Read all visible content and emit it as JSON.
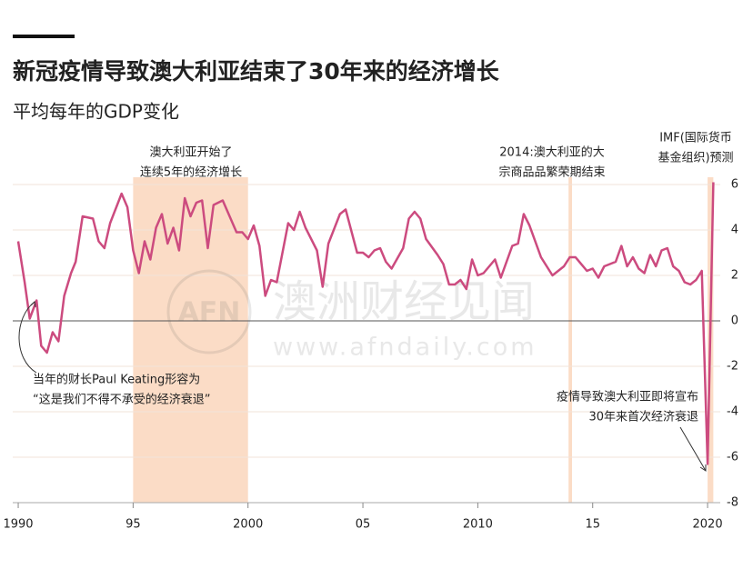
{
  "chart_data": {
    "type": "line",
    "title": "新冠疫情导致澳大利亚结束了30年来的经济增长",
    "subtitle": "平均每年的GDP变化",
    "color": "#cc4b7f",
    "x": [
      1990.0,
      1990.28,
      1990.5,
      1990.8,
      1991.0,
      1991.25,
      1991.5,
      1991.75,
      1992.0,
      1992.3,
      1992.5,
      1992.8,
      1993.25,
      1993.5,
      1993.75,
      1994.0,
      1994.5,
      1994.75,
      1995.0,
      1995.25,
      1995.5,
      1995.75,
      1996.0,
      1996.25,
      1996.5,
      1996.75,
      1997.0,
      1997.25,
      1997.5,
      1997.75,
      1998.0,
      1998.25,
      1998.5,
      1998.9,
      1999.5,
      1999.75,
      2000.0,
      2000.25,
      2000.5,
      2000.75,
      2001.0,
      2001.25,
      2001.75,
      2002.0,
      2002.25,
      2002.5,
      2003.0,
      2003.25,
      2003.5,
      2004.0,
      2004.25,
      2004.75,
      2005.0,
      2005.25,
      2005.5,
      2005.75,
      2006.0,
      2006.25,
      2006.75,
      2007.0,
      2007.25,
      2007.5,
      2007.75,
      2008.25,
      2008.5,
      2008.75,
      2009.0,
      2009.25,
      2009.5,
      2009.75,
      2010.0,
      2010.25,
      2010.75,
      2011.0,
      2011.5,
      2011.75,
      2012.0,
      2012.25,
      2012.75,
      2013.25,
      2013.5,
      2013.75,
      2014.0,
      2014.25,
      2014.75,
      2015.0,
      2015.25,
      2015.5,
      2016.0,
      2016.25,
      2016.5,
      2016.75,
      2017.0,
      2017.25,
      2017.5,
      2017.75,
      2018.0,
      2018.25,
      2018.5,
      2018.75,
      2019.0,
      2019.25,
      2019.5,
      2019.75,
      2020.0,
      2020.25
    ],
    "values": [
      3.5,
      1.7,
      0.1,
      0.9,
      -1.1,
      -1.4,
      -0.5,
      -0.9,
      1.1,
      2.1,
      2.6,
      4.6,
      4.5,
      3.5,
      3.2,
      4.3,
      5.6,
      5.0,
      3.1,
      2.1,
      3.5,
      2.7,
      4.1,
      4.7,
      3.4,
      4.1,
      3.1,
      5.4,
      4.6,
      5.2,
      5.3,
      3.2,
      5.1,
      5.3,
      3.9,
      3.9,
      3.6,
      4.2,
      3.3,
      1.1,
      1.8,
      1.7,
      4.3,
      4.0,
      4.8,
      4.1,
      3.1,
      1.5,
      3.4,
      4.7,
      4.9,
      3.0,
      3.0,
      2.8,
      3.1,
      3.2,
      2.6,
      2.3,
      3.2,
      4.5,
      4.8,
      4.5,
      3.6,
      2.9,
      2.5,
      1.6,
      1.6,
      1.8,
      1.4,
      2.7,
      2.0,
      2.1,
      2.7,
      1.9,
      3.3,
      3.4,
      4.7,
      4.2,
      2.8,
      2.0,
      2.2,
      2.4,
      2.8,
      2.8,
      2.2,
      2.3,
      1.9,
      2.4,
      2.6,
      3.3,
      2.4,
      2.8,
      2.3,
      2.1,
      2.9,
      2.4,
      3.1,
      3.2,
      2.4,
      2.2,
      1.7,
      1.6,
      1.8,
      2.2,
      -6.3,
      6.1
    ],
    "xlim": [
      1989.5,
      2020.5
    ],
    "xticks": [
      1990,
      {
        "value": 1995,
        "label": "95"
      },
      2000,
      {
        "value": 2005,
        "label": "05"
      },
      2010,
      {
        "value": 2015,
        "label": "15"
      },
      2020
    ],
    "ylim": [
      -8,
      6
    ],
    "yticks": [
      6,
      4,
      2,
      0,
      -2,
      -4,
      -6,
      -8
    ],
    "grid": true,
    "highlight_ranges": [
      [
        1995,
        2000
      ],
      [
        2013.95,
        2014.1
      ],
      [
        2020,
        2020.25
      ]
    ],
    "annotations": [
      {
        "lines": [
          "澳大利亚开始了",
          "连续5年的经济增长"
        ]
      },
      {
        "lines": [
          "2014:澳大利亚的大",
          "宗商品品繁荣期结束"
        ]
      },
      {
        "lines": [
          "IMF(国际货币",
          "基金组织)预测"
        ]
      },
      {
        "lines": [
          "当年的财长Paul Keating形容为",
          "“这是我们不得不承受的经济衰退”"
        ]
      },
      {
        "lines": [
          "疫情导致澳大利亚即将宣布",
          "30年来首次经济衰退"
        ]
      }
    ],
    "watermark": {
      "logo": "AFN",
      "name": "澳洲财经见闻",
      "url": "www.afndaily.com"
    }
  }
}
